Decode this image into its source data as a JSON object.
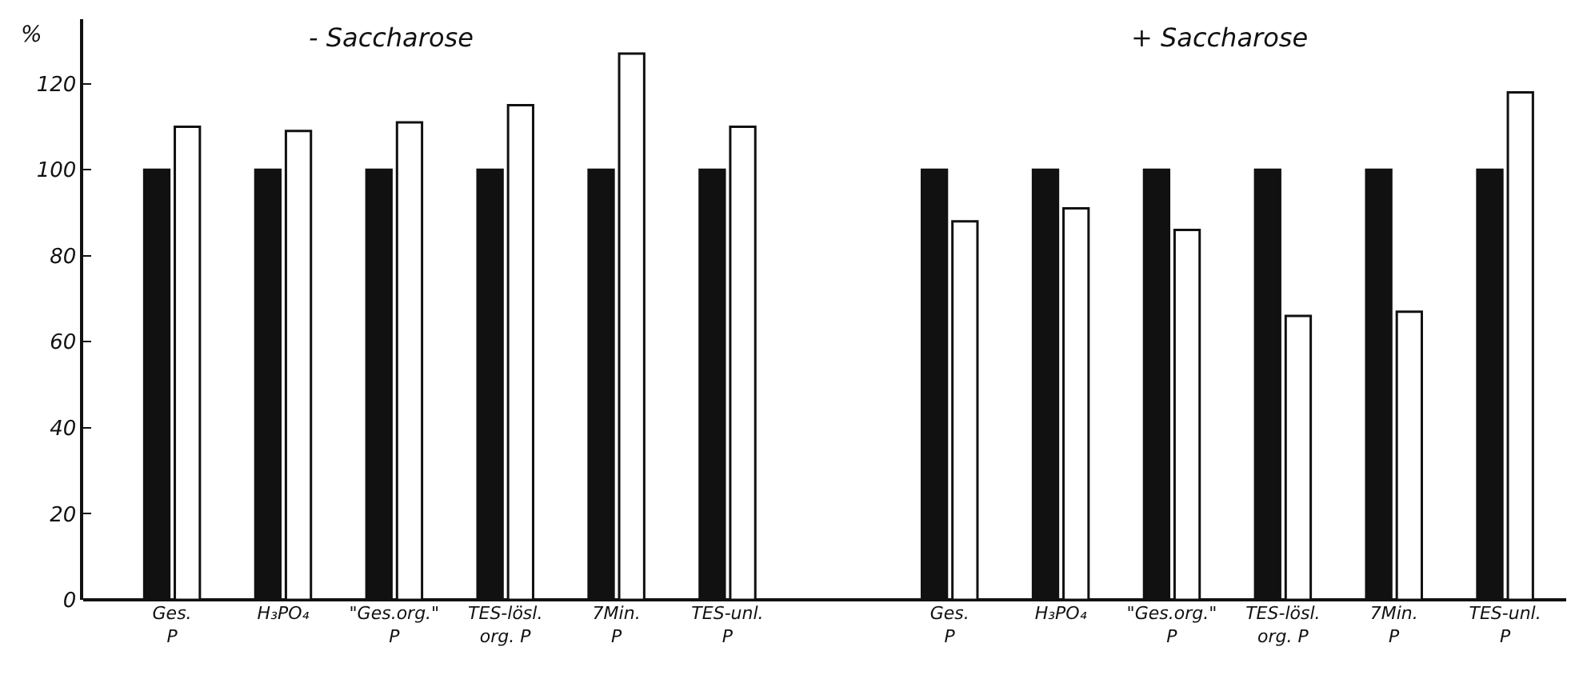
{
  "chart_data": {
    "type": "bar",
    "ylabel": "%",
    "categories": [
      "Ges.\nP",
      "H₃PO₄",
      "\"Ges.org.\"\nP",
      "TES-lösl.\norg. P",
      "7Min.\nP",
      "TES-unl.\nP",
      null,
      "Ges.\nP",
      "H₃PO₄",
      "\"Ges.org.\"\nP",
      "TES-lösl.\norg. P",
      "7Min.\nP",
      "TES-unl.\nP"
    ],
    "series": [
      {
        "color": "#111111",
        "values": [
          100,
          100,
          100,
          100,
          100,
          100,
          null,
          100,
          100,
          100,
          100,
          100,
          100
        ]
      },
      {
        "color": "#ffffff",
        "values": [
          110,
          109,
          111,
          115,
          127,
          110,
          null,
          88,
          91,
          86,
          66,
          67,
          118
        ]
      }
    ],
    "ylim": [
      0,
      135
    ],
    "yticks": [
      0,
      20,
      40,
      60,
      80,
      100,
      120
    ],
    "grid": false,
    "annotations": [
      "- Saccharose",
      "+ Saccharose"
    ]
  }
}
